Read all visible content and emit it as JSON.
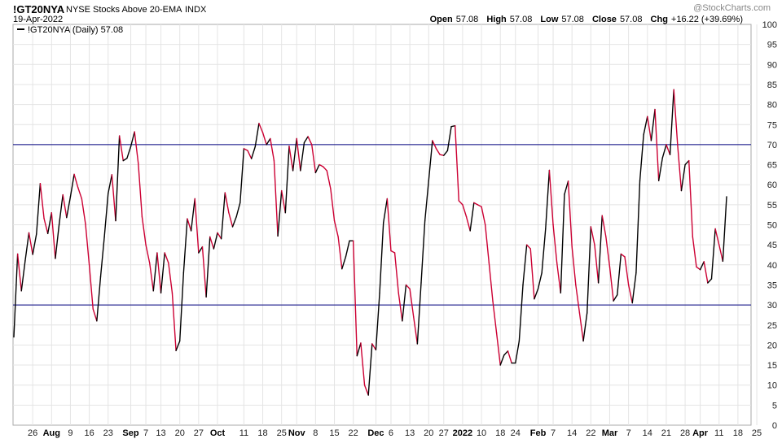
{
  "header": {
    "symbol": "!GT20NYA",
    "name": "NYSE Stocks Above 20-EMA",
    "exchange": "INDX",
    "date": "19-Apr-2022",
    "open_label": "Open",
    "open": "57.08",
    "high_label": "High",
    "high": "57.08",
    "low_label": "Low",
    "low": "57.08",
    "close_label": "Close",
    "close": "57.08",
    "chg_label": "Chg",
    "chg": "+16.22 (+39.69%)",
    "watermark": "@StockCharts.com"
  },
  "chart_data": {
    "type": "line",
    "legend": {
      "text": "!GT20NYA (Daily) 57.08",
      "placement": "top-left"
    },
    "ylim": [
      0,
      100
    ],
    "yticks": [
      0,
      5,
      10,
      15,
      20,
      25,
      30,
      35,
      40,
      45,
      50,
      55,
      60,
      65,
      70,
      75,
      80,
      85,
      90,
      95,
      100
    ],
    "reference_lines": [
      70,
      30
    ],
    "up_color": "#000000",
    "down_color": "#cc0033",
    "reference_color": "#000080",
    "xticks": [
      {
        "label": "26",
        "index": 5,
        "month": false
      },
      {
        "label": "Aug",
        "index": 10,
        "month": true
      },
      {
        "label": "9",
        "index": 15,
        "month": false
      },
      {
        "label": "16",
        "index": 20,
        "month": false
      },
      {
        "label": "23",
        "index": 25,
        "month": false
      },
      {
        "label": "Sep",
        "index": 31,
        "month": true
      },
      {
        "label": "7",
        "index": 35,
        "month": false
      },
      {
        "label": "13",
        "index": 39,
        "month": false
      },
      {
        "label": "20",
        "index": 44,
        "month": false
      },
      {
        "label": "27",
        "index": 49,
        "month": false
      },
      {
        "label": "Oct",
        "index": 54,
        "month": true
      },
      {
        "label": "11",
        "index": 61,
        "month": false
      },
      {
        "label": "18",
        "index": 66,
        "month": false
      },
      {
        "label": "25",
        "index": 71,
        "month": false
      },
      {
        "label": "Nov",
        "index": 75,
        "month": true
      },
      {
        "label": "8",
        "index": 80,
        "month": false
      },
      {
        "label": "15",
        "index": 85,
        "month": false
      },
      {
        "label": "22",
        "index": 90,
        "month": false
      },
      {
        "label": "Dec",
        "index": 96,
        "month": true
      },
      {
        "label": "6",
        "index": 100,
        "month": false
      },
      {
        "label": "13",
        "index": 105,
        "month": false
      },
      {
        "label": "20",
        "index": 110,
        "month": false
      },
      {
        "label": "27",
        "index": 114,
        "month": false
      },
      {
        "label": "2022",
        "index": 119,
        "month": true
      },
      {
        "label": "10",
        "index": 124,
        "month": false
      },
      {
        "label": "18",
        "index": 129,
        "month": false
      },
      {
        "label": "24",
        "index": 133,
        "month": false
      },
      {
        "label": "Feb",
        "index": 139,
        "month": true
      },
      {
        "label": "7",
        "index": 143,
        "month": false
      },
      {
        "label": "14",
        "index": 148,
        "month": false
      },
      {
        "label": "22",
        "index": 153,
        "month": false
      },
      {
        "label": "Mar",
        "index": 158,
        "month": true
      },
      {
        "label": "7",
        "index": 163,
        "month": false
      },
      {
        "label": "14",
        "index": 168,
        "month": false
      },
      {
        "label": "21",
        "index": 173,
        "month": false
      },
      {
        "label": "28",
        "index": 178,
        "month": false
      },
      {
        "label": "Apr",
        "index": 182,
        "month": true
      },
      {
        "label": "11",
        "index": 187,
        "month": false
      },
      {
        "label": "18",
        "index": 192,
        "month": false
      },
      {
        "label": "25",
        "index": 197,
        "month": false
      }
    ],
    "series": [
      {
        "values": [
          22,
          42.7,
          33.5,
          41,
          48,
          42.6,
          47.7,
          60.3,
          51.6,
          47.8,
          53,
          41.6,
          50,
          57.5,
          51.8,
          57,
          62.6,
          59.3,
          56.5,
          50.2,
          40,
          29,
          26,
          37,
          47,
          57.8,
          62.5,
          51,
          72.2,
          66,
          66.6,
          69.5,
          73.2,
          65.3,
          52,
          45,
          40.5,
          33.5,
          43,
          33,
          43,
          40.5,
          33,
          18.6,
          21,
          38,
          51.5,
          48.5,
          56.5,
          43,
          44.5,
          32,
          47,
          44,
          48,
          46.5,
          58,
          53,
          49.5,
          52,
          55.5,
          69,
          68.5,
          66.5,
          69.5,
          75.3,
          73,
          70,
          71.5,
          66,
          47.2,
          58.5,
          53,
          69.6,
          63.5,
          71.5,
          63.5,
          70.5,
          72,
          70,
          63,
          65,
          64.5,
          63.5,
          59,
          51,
          47,
          39,
          42,
          46,
          46,
          17.3,
          20.5,
          10,
          7.5,
          20.3,
          18.8,
          33,
          50.5,
          56.5,
          43.5,
          43,
          33,
          26,
          35,
          34,
          27,
          20.3,
          35.5,
          51,
          61,
          71,
          69,
          67.5,
          67.3,
          68.5,
          74.5,
          74.7,
          56,
          55,
          52,
          48.5,
          55.5,
          55,
          54.5,
          50,
          40.5,
          31,
          23,
          15,
          17.5,
          18.5,
          15.5,
          15.5,
          21,
          35,
          45,
          44,
          31.5,
          34,
          38,
          49,
          63.6,
          50,
          40.5,
          33,
          57.6,
          60.9,
          44.5,
          35,
          28,
          21,
          28,
          49.5,
          45,
          35.5,
          52.3,
          47,
          39.5,
          31,
          32.5,
          42.7,
          42,
          35,
          30.5,
          38,
          61,
          72.5,
          77,
          71,
          78.8,
          61,
          66.7,
          70,
          67.5,
          83.7,
          70,
          58.5,
          65,
          66,
          47,
          39.5,
          38.8,
          40.8,
          35.5,
          36.5,
          49,
          45,
          40.9,
          57
        ]
      }
    ]
  }
}
